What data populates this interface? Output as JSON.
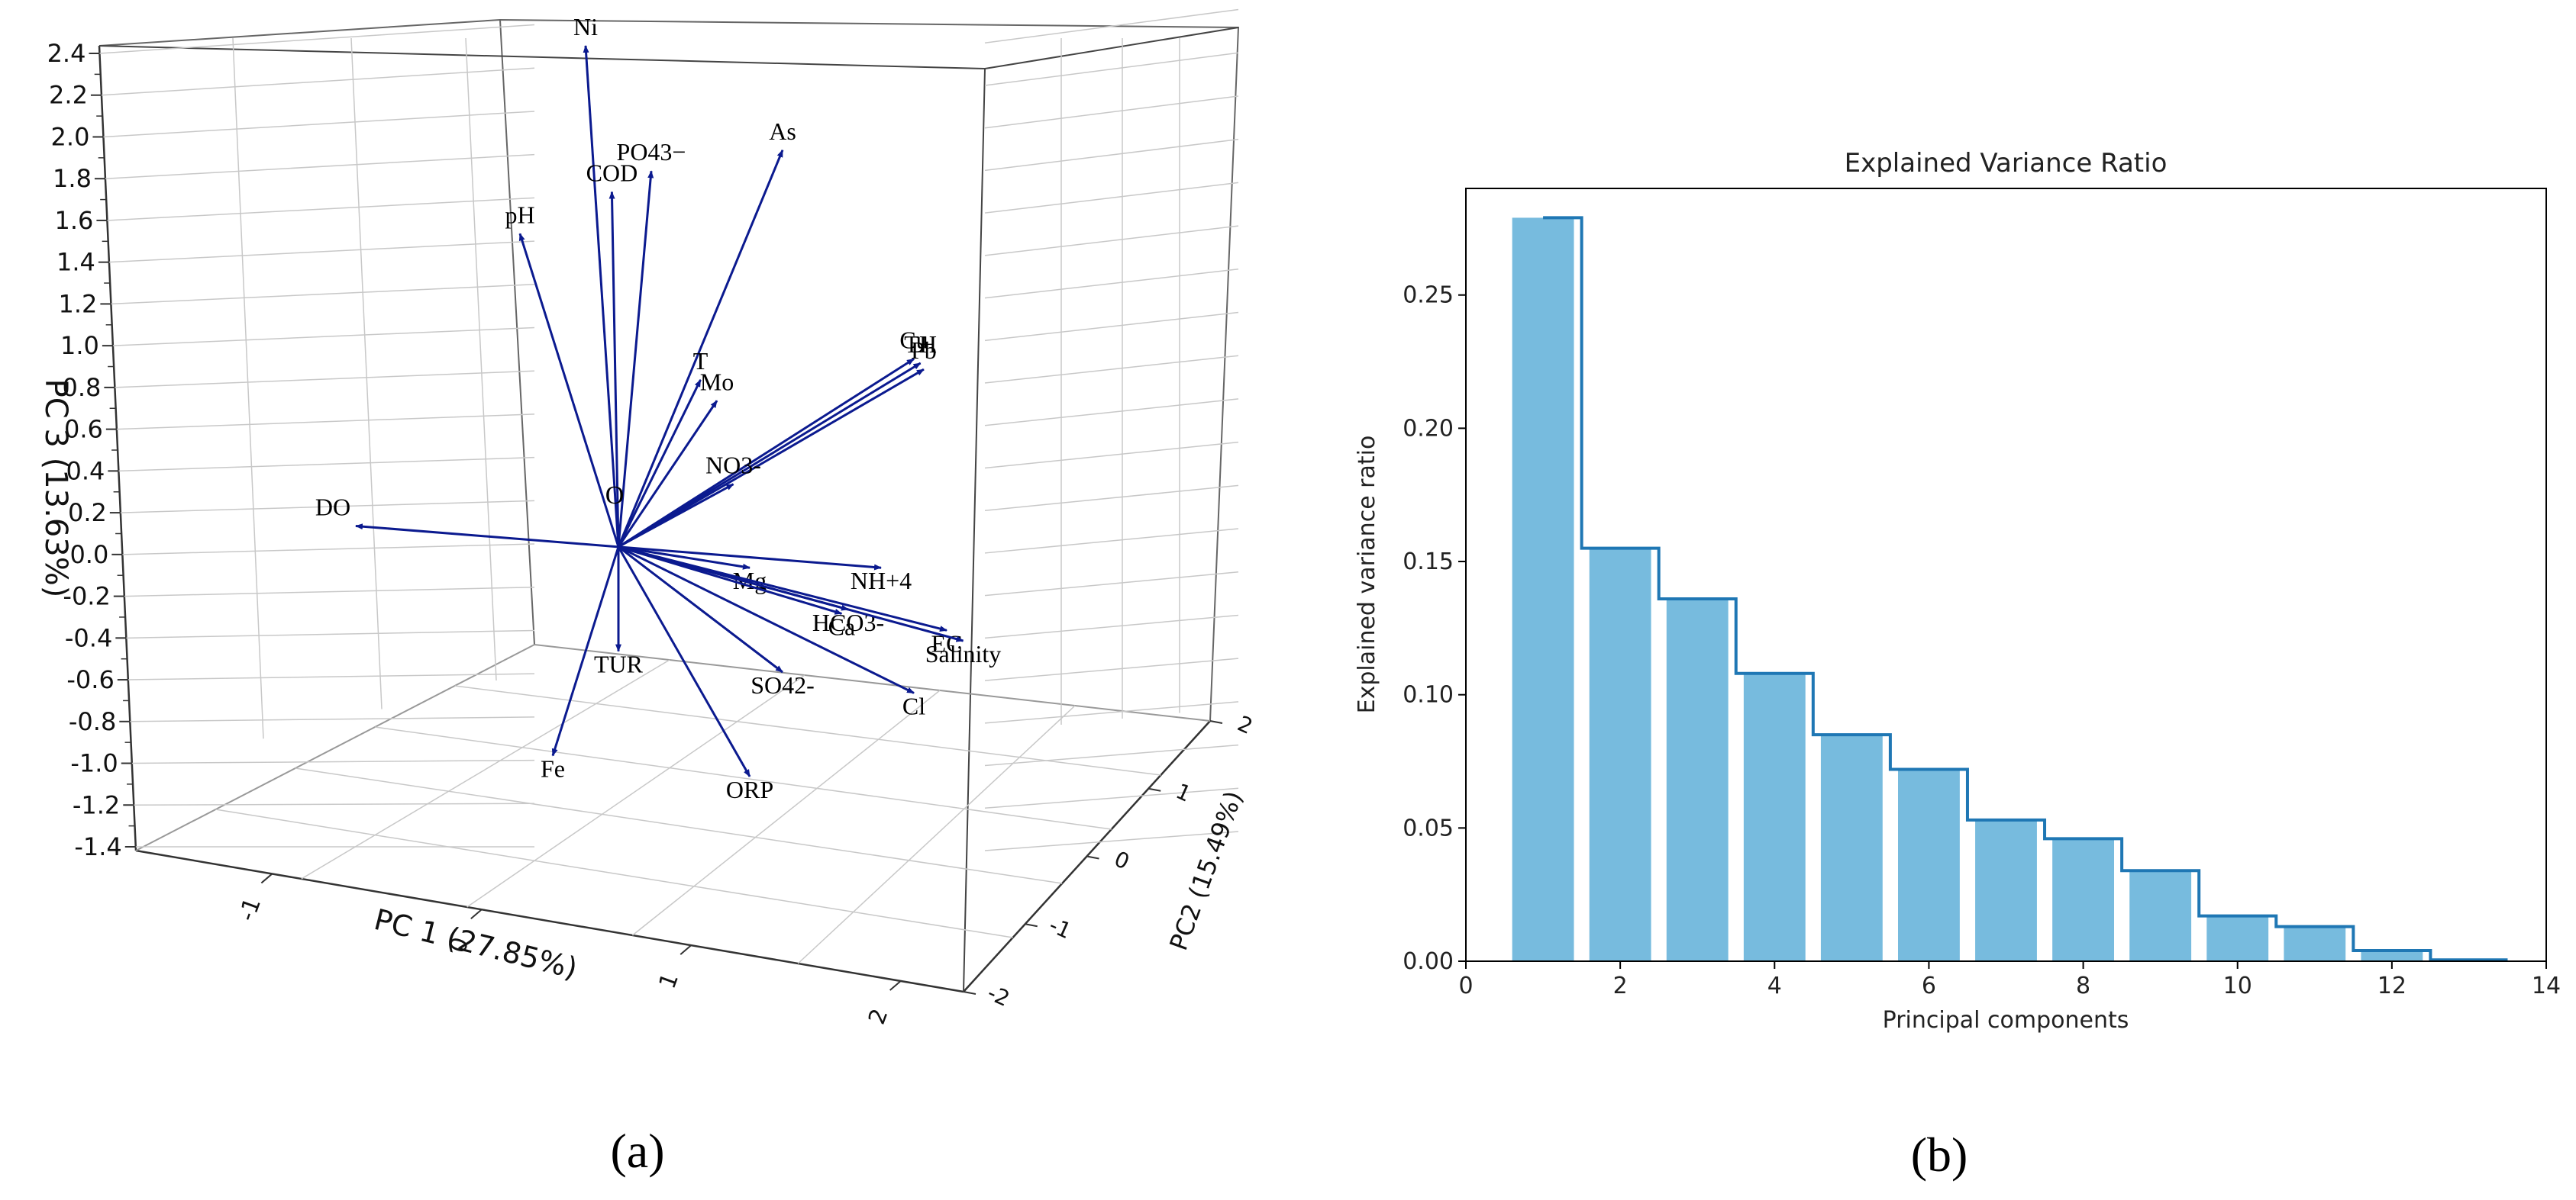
{
  "chart_data": [
    {
      "type": "biplot-3d",
      "panel_label": "(a)",
      "xlabel": "PC 1 (27.85%)",
      "ylabel": "PC2 (15.49%)",
      "zlabel": "PC 3 (13.63%)",
      "x_ticks": [
        "-1",
        "0",
        "1",
        "2"
      ],
      "y_ticks": [
        "-2",
        "-1",
        "0",
        "1",
        "2"
      ],
      "z_ticks": [
        "-1.4",
        "-1.2",
        "-1.0",
        "-0.8",
        "-0.6",
        "-0.4",
        "-0.2",
        "0.0",
        "0.2",
        "0.4",
        "0.6",
        "0.8",
        "1.0",
        "1.2",
        "1.4",
        "1.6",
        "1.8",
        "2.0",
        "2.2",
        "2.4"
      ],
      "zlim": [
        -1.4,
        2.4
      ],
      "origin_label": "O",
      "loadings": [
        {
          "label": "Ni",
          "pc1": -0.1,
          "pc3": 2.4
        },
        {
          "label": "pH",
          "pc1": -0.3,
          "pc3": 1.5
        },
        {
          "label": "COD",
          "pc1": -0.02,
          "pc3": 1.7
        },
        {
          "label": "PO43−",
          "pc1": 0.1,
          "pc3": 1.8
        },
        {
          "label": "As",
          "pc1": 0.5,
          "pc3": 1.9
        },
        {
          "label": "T",
          "pc1": 0.25,
          "pc3": 0.8
        },
        {
          "label": "Mo",
          "pc1": 0.3,
          "pc3": 0.7
        },
        {
          "label": "Cu",
          "pc1": 0.9,
          "pc3": 0.9
        },
        {
          "label": "TH",
          "pc1": 0.92,
          "pc3": 0.88
        },
        {
          "label": "Pb",
          "pc1": 0.93,
          "pc3": 0.85
        },
        {
          "label": "NO3-",
          "pc1": 0.35,
          "pc3": 0.3
        },
        {
          "label": "DO",
          "pc1": -0.8,
          "pc3": 0.1
        },
        {
          "label": "NH+4",
          "pc1": 0.8,
          "pc3": -0.1
        },
        {
          "label": "Mg",
          "pc1": 0.4,
          "pc3": -0.1
        },
        {
          "label": "HCO3-",
          "pc1": 0.7,
          "pc3": -0.3
        },
        {
          "label": "Ca",
          "pc1": 0.68,
          "pc3": -0.32
        },
        {
          "label": "EC",
          "pc1": 1.0,
          "pc3": -0.4
        },
        {
          "label": "Salinity",
          "pc1": 1.05,
          "pc3": -0.45
        },
        {
          "label": "Cl",
          "pc1": 0.9,
          "pc3": -0.7
        },
        {
          "label": "SO42-",
          "pc1": 0.5,
          "pc3": -0.6
        },
        {
          "label": "TUR",
          "pc1": 0.0,
          "pc3": -0.5
        },
        {
          "label": "ORP",
          "pc1": 0.4,
          "pc3": -1.1
        },
        {
          "label": "Fe",
          "pc1": -0.2,
          "pc3": -1.0
        }
      ]
    },
    {
      "type": "bar",
      "panel_label": "(b)",
      "title": "Explained Variance Ratio",
      "xlabel": "Principal components",
      "ylabel": "Explained variance ratio",
      "x": [
        1,
        2,
        3,
        4,
        5,
        6,
        7,
        8,
        9,
        10,
        11,
        12,
        13
      ],
      "values": [
        0.279,
        0.155,
        0.136,
        0.108,
        0.085,
        0.072,
        0.053,
        0.046,
        0.034,
        0.017,
        0.013,
        0.004,
        0.0005
      ],
      "xlim": [
        0,
        14
      ],
      "ylim": [
        0,
        0.29
      ],
      "x_ticks": [
        "0",
        "2",
        "4",
        "6",
        "8",
        "10",
        "12",
        "14"
      ],
      "y_ticks": [
        "0.00",
        "0.05",
        "0.10",
        "0.15",
        "0.20",
        "0.25"
      ],
      "bar_color": "#77bbde",
      "step_color": "#1f77b4"
    }
  ]
}
